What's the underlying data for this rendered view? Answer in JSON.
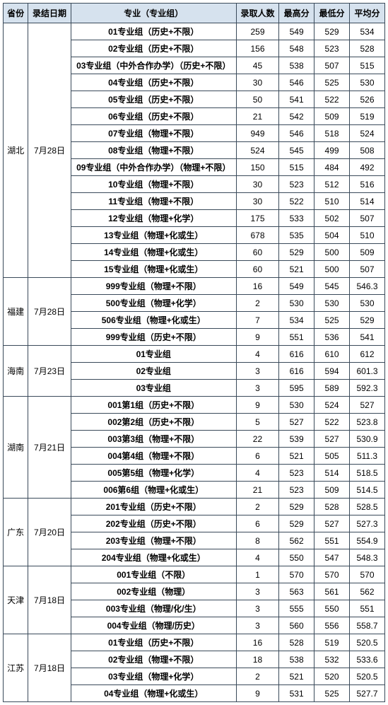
{
  "headers": {
    "province": "省份",
    "date": "录结日期",
    "major": "专业（专业组）",
    "count": "录取人数",
    "high": "最高分",
    "low": "最低分",
    "avg": "平均分"
  },
  "groups": [
    {
      "province": "湖北",
      "date": "7月28日",
      "rows": [
        {
          "major": "01专业组（历史+不限）",
          "bold": true,
          "count": 259,
          "high": 549,
          "low": 529,
          "avg": 534
        },
        {
          "major": "02专业组（历史+不限）",
          "bold": true,
          "count": 156,
          "high": 548,
          "low": 523,
          "avg": 528
        },
        {
          "major": "03专业组（中外合作办学）（历史+不限）",
          "bold": true,
          "count": 45,
          "high": 538,
          "low": 507,
          "avg": 515
        },
        {
          "major": "04专业组（历史+不限）",
          "bold": true,
          "count": 30,
          "high": 546,
          "low": 525,
          "avg": 530
        },
        {
          "major": "05专业组（历史+不限）",
          "bold": true,
          "count": 50,
          "high": 541,
          "low": 522,
          "avg": 526
        },
        {
          "major": "06专业组（历史+不限）",
          "bold": true,
          "count": 21,
          "high": 542,
          "low": 509,
          "avg": 519
        },
        {
          "major": "07专业组（物理+不限）",
          "bold": true,
          "count": 949,
          "high": 546,
          "low": 518,
          "avg": 524
        },
        {
          "major": "08专业组（物理+不限）",
          "bold": true,
          "count": 524,
          "high": 545,
          "low": 499,
          "avg": 508
        },
        {
          "major": "09专业组（中外合作办学）（物理+不限）",
          "bold": true,
          "count": 150,
          "high": 515,
          "low": 484,
          "avg": 492
        },
        {
          "major": "10专业组（物理+不限）",
          "bold": true,
          "count": 30,
          "high": 523,
          "low": 512,
          "avg": 516
        },
        {
          "major": "11专业组（物理+不限）",
          "bold": true,
          "count": 30,
          "high": 522,
          "low": 510,
          "avg": 514
        },
        {
          "major": "12专业组（物理+化学）",
          "bold": true,
          "count": 175,
          "high": 533,
          "low": 502,
          "avg": 507
        },
        {
          "major": "13专业组（物理+化或生）",
          "bold": true,
          "count": 678,
          "high": 535,
          "low": 504,
          "avg": 510
        },
        {
          "major": "14专业组（物理+化或生）",
          "bold": true,
          "count": 60,
          "high": 529,
          "low": 500,
          "avg": 509
        },
        {
          "major": "15专业组（物理+化或生）",
          "bold": true,
          "count": 60,
          "high": 521,
          "low": 500,
          "avg": 507
        }
      ]
    },
    {
      "province": "福建",
      "date": "7月28日",
      "rows": [
        {
          "major": "999专业组（物理+不限）",
          "bold": true,
          "count": 16,
          "high": 549,
          "low": 545,
          "avg": 546.3
        },
        {
          "major": "500专业组（物理+化学）",
          "bold": true,
          "count": 2,
          "high": 530,
          "low": 530,
          "avg": 530
        },
        {
          "major": "506专业组（物理+化或生）",
          "bold": true,
          "count": 7,
          "high": 534,
          "low": 525,
          "avg": 529
        },
        {
          "major": "999专业组（历史+不限）",
          "bold": true,
          "count": 9,
          "high": 551,
          "low": 536,
          "avg": 541
        }
      ]
    },
    {
      "province": "海南",
      "date": "7月23日",
      "rows": [
        {
          "major": "01专业组",
          "bold": true,
          "count": 4,
          "high": 616,
          "low": 610,
          "avg": 612
        },
        {
          "major": "02专业组",
          "bold": true,
          "count": 3,
          "high": 616,
          "low": 594,
          "avg": 601.3
        },
        {
          "major": "03专业组",
          "bold": true,
          "count": 3,
          "high": 595,
          "low": 589,
          "avg": 592.3
        }
      ]
    },
    {
      "province": "湖南",
      "date": "7月21日",
      "rows": [
        {
          "major": "001第1组（历史+不限）",
          "bold": true,
          "count": 9,
          "high": 530,
          "low": 524,
          "avg": 527
        },
        {
          "major": "002第2组（历史+不限）",
          "bold": true,
          "count": 5,
          "high": 527,
          "low": 522,
          "avg": 523.8
        },
        {
          "major": "003第3组（物理+不限）",
          "bold": true,
          "count": 22,
          "high": 539,
          "low": 527,
          "avg": 530.9
        },
        {
          "major": "004第4组（物理+不限）",
          "bold": true,
          "count": 6,
          "high": 521,
          "low": 505,
          "avg": 511.3
        },
        {
          "major": "005第5组（物理+化学）",
          "bold": true,
          "count": 4,
          "high": 523,
          "low": 514,
          "avg": 518.5
        },
        {
          "major": "006第6组（物理+化或生）",
          "bold": true,
          "count": 21,
          "high": 523,
          "low": 509,
          "avg": 514.5
        }
      ]
    },
    {
      "province": "广东",
      "date": "7月20日",
      "rows": [
        {
          "major": "201专业组（历史+不限）",
          "bold": true,
          "count": 2,
          "high": 529,
          "low": 528,
          "avg": 528.5
        },
        {
          "major": "202专业组（历史+不限）",
          "bold": true,
          "count": 6,
          "high": 529,
          "low": 527,
          "avg": 527.3
        },
        {
          "major": "203专业组（物理+不限）",
          "bold": true,
          "count": 8,
          "high": 562,
          "low": 551,
          "avg": 554.9
        },
        {
          "major": "204专业组（物理+化或生）",
          "bold": true,
          "count": 4,
          "high": 550,
          "low": 547,
          "avg": 548.3
        }
      ]
    },
    {
      "province": "天津",
      "date": "7月18日",
      "rows": [
        {
          "major": "001专业组（不限）",
          "bold": true,
          "count": 1,
          "high": 570,
          "low": 570,
          "avg": 570
        },
        {
          "major": "002专业组（物理）",
          "bold": true,
          "count": 3,
          "high": 563,
          "low": 561,
          "avg": 562
        },
        {
          "major": "003专业组（物理/化/生）",
          "bold": true,
          "count": 3,
          "high": 555,
          "low": 550,
          "avg": 551
        },
        {
          "major": "004专业组（物理/历史）",
          "bold": true,
          "count": 3,
          "high": 560,
          "low": 556,
          "avg": 558.7
        }
      ]
    },
    {
      "province": "江苏",
      "date": "7月18日",
      "rows": [
        {
          "major": "01专业组（历史+不限）",
          "bold": true,
          "count": 16,
          "high": 528,
          "low": 519,
          "avg": 520.5
        },
        {
          "major": "02专业组（物理+不限）",
          "bold": true,
          "count": 18,
          "high": 538,
          "low": 532,
          "avg": 533.6
        },
        {
          "major": "03专业组（物理+化学）",
          "bold": true,
          "count": 2,
          "high": 521,
          "low": 520,
          "avg": 520.5
        },
        {
          "major": "04专业组（物理+化或生）",
          "bold": true,
          "count": 9,
          "high": 531,
          "low": 525,
          "avg": 527.7
        }
      ]
    }
  ]
}
